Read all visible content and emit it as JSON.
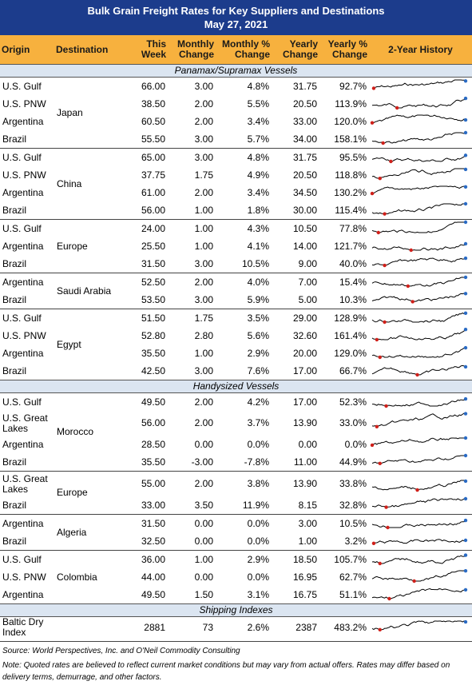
{
  "header": {
    "title": "Bulk Grain Freight Rates for Key Suppliers and Destinations",
    "date": "May 27, 2021"
  },
  "columns": [
    "Origin",
    "Destination",
    "This Week",
    "Monthly Change",
    "Monthly % Change",
    "Yearly Change",
    "Yearly % Change",
    "2-Year History"
  ],
  "sections": [
    {
      "title": "Panamax/Supramax Vessels",
      "groups": [
        {
          "destination": "Japan",
          "rows": [
            {
              "origin": "U.S. Gulf",
              "cells": [
                "66.00",
                "3.00",
                "4.8%",
                "31.75",
                "92.7%"
              ]
            },
            {
              "origin": "U.S. PNW",
              "cells": [
                "38.50",
                "2.00",
                "5.5%",
                "20.50",
                "113.9%"
              ]
            },
            {
              "origin": "Argentina",
              "cells": [
                "60.50",
                "2.00",
                "3.4%",
                "33.00",
                "120.0%"
              ]
            },
            {
              "origin": "Brazil",
              "cells": [
                "55.50",
                "3.00",
                "5.7%",
                "34.00",
                "158.1%"
              ]
            }
          ]
        },
        {
          "destination": "China",
          "rows": [
            {
              "origin": "U.S. Gulf",
              "cells": [
                "65.00",
                "3.00",
                "4.8%",
                "31.75",
                "95.5%"
              ]
            },
            {
              "origin": "U.S. PNW",
              "cells": [
                "37.75",
                "1.75",
                "4.9%",
                "20.50",
                "118.8%"
              ]
            },
            {
              "origin": "Argentina",
              "cells": [
                "61.00",
                "2.00",
                "3.4%",
                "34.50",
                "130.2%"
              ]
            },
            {
              "origin": "Brazil",
              "cells": [
                "56.00",
                "1.00",
                "1.8%",
                "30.00",
                "115.4%"
              ]
            }
          ]
        },
        {
          "destination": "Europe",
          "rows": [
            {
              "origin": "U.S. Gulf",
              "cells": [
                "24.00",
                "1.00",
                "4.3%",
                "10.50",
                "77.8%"
              ]
            },
            {
              "origin": "Argentina",
              "cells": [
                "25.50",
                "1.00",
                "4.1%",
                "14.00",
                "121.7%"
              ]
            },
            {
              "origin": "Brazil",
              "cells": [
                "31.50",
                "3.00",
                "10.5%",
                "9.00",
                "40.0%"
              ]
            }
          ]
        },
        {
          "destination": "Saudi Arabia",
          "rows": [
            {
              "origin": "Argentina",
              "cells": [
                "52.50",
                "2.00",
                "4.0%",
                "7.00",
                "15.4%"
              ]
            },
            {
              "origin": "Brazil",
              "cells": [
                "53.50",
                "3.00",
                "5.9%",
                "5.00",
                "10.3%"
              ]
            }
          ]
        },
        {
          "destination": "Egypt",
          "rows": [
            {
              "origin": "U.S. Gulf",
              "cells": [
                "51.50",
                "1.75",
                "3.5%",
                "29.00",
                "128.9%"
              ]
            },
            {
              "origin": "U.S. PNW",
              "cells": [
                "52.80",
                "2.80",
                "5.6%",
                "32.60",
                "161.4%"
              ]
            },
            {
              "origin": "Argentina",
              "cells": [
                "35.50",
                "1.00",
                "2.9%",
                "20.00",
                "129.0%"
              ]
            },
            {
              "origin": "Brazil",
              "cells": [
                "42.50",
                "3.00",
                "7.6%",
                "17.00",
                "66.7%"
              ]
            }
          ]
        }
      ]
    },
    {
      "title": "Handysized Vessels",
      "groups": [
        {
          "destination": "Morocco",
          "rows": [
            {
              "origin": "U.S. Gulf",
              "cells": [
                "49.50",
                "2.00",
                "4.2%",
                "17.00",
                "52.3%"
              ]
            },
            {
              "origin": "U.S. Great Lakes",
              "cells": [
                "56.00",
                "2.00",
                "3.7%",
                "13.90",
                "33.0%"
              ]
            },
            {
              "origin": "Argentina",
              "cells": [
                "28.50",
                "0.00",
                "0.0%",
                "0.00",
                "0.0%"
              ]
            },
            {
              "origin": "Brazil",
              "cells": [
                "35.50",
                "-3.00",
                "-7.8%",
                "11.00",
                "44.9%"
              ]
            }
          ]
        },
        {
          "destination": "Europe",
          "rows": [
            {
              "origin": "U.S. Great Lakes",
              "cells": [
                "55.00",
                "2.00",
                "3.8%",
                "13.90",
                "33.8%"
              ]
            },
            {
              "origin": "Brazil",
              "cells": [
                "33.00",
                "3.50",
                "11.9%",
                "8.15",
                "32.8%"
              ]
            }
          ]
        },
        {
          "destination": "Algeria",
          "rows": [
            {
              "origin": "Argentina",
              "cells": [
                "31.50",
                "0.00",
                "0.0%",
                "3.00",
                "10.5%"
              ]
            },
            {
              "origin": "Brazil",
              "cells": [
                "32.50",
                "0.00",
                "0.0%",
                "1.00",
                "3.2%"
              ]
            }
          ]
        },
        {
          "destination": "Colombia",
          "rows": [
            {
              "origin": "U.S. Gulf",
              "cells": [
                "36.00",
                "1.00",
                "2.9%",
                "18.50",
                "105.7%"
              ]
            },
            {
              "origin": "U.S. PNW",
              "cells": [
                "44.00",
                "0.00",
                "0.0%",
                "16.95",
                "62.7%"
              ]
            },
            {
              "origin": "Argentina",
              "cells": [
                "49.50",
                "1.50",
                "3.1%",
                "16.75",
                "51.1%"
              ]
            }
          ]
        }
      ]
    },
    {
      "title": "Shipping Indexes",
      "groups": [
        {
          "rows": [
            {
              "origin": "Baltic Dry Index",
              "cells": [
                "2881",
                "73",
                "2.6%",
                "2387",
                "483.2%"
              ]
            }
          ]
        }
      ]
    }
  ],
  "footer": {
    "source": "Source: World Perspectives, Inc. and O'Neil Commodity Consulting",
    "note": "Note: Quoted rates are believed to reflect current market conditions but may vary from actual offers. Rates may differ based on delivery terms, demurrage, and other factors."
  }
}
